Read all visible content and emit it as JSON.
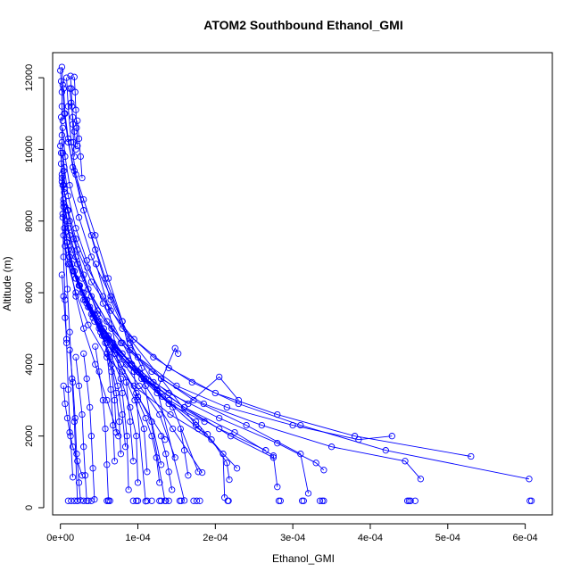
{
  "chart_data": {
    "type": "line",
    "title": "ATOM2 Southbound Ethanol_GMI",
    "xlabel": "Ethanol_GMI",
    "ylabel": "Altitude (m)",
    "xlim": [
      -1e-05,
      0.000635
    ],
    "ylim": [
      -200,
      12700
    ],
    "x_ticks": [
      0,
      0.0001,
      0.0002,
      0.0003,
      0.0004,
      0.0005,
      0.0006
    ],
    "x_tick_labels": [
      "0e+00",
      "1e-04",
      "2e-04",
      "3e-04",
      "4e-04",
      "5e-04",
      "6e-04"
    ],
    "y_ticks": [
      0,
      2000,
      4000,
      6000,
      8000,
      10000,
      12000
    ],
    "y_tick_labels": [
      "0",
      "2000",
      "4000",
      "6000",
      "8000",
      "10000",
      "12000"
    ],
    "marker": "open-circle",
    "color": "#0000ff",
    "grid": false,
    "series": [
      {
        "x": [
          2e-06,
          3e-06,
          5e-06,
          1e-05,
          1.8e-05,
          3e-05,
          4.5e-05,
          6.2e-05,
          8e-05,
          9.5e-05,
          0.00011
        ],
        "y": [
          12300,
          11800,
          11000,
          10200,
          9400,
          8600,
          7600,
          6400,
          5200,
          3800,
          180
        ]
      },
      {
        "x": [
          4e-06,
          6e-06,
          1e-05,
          1.6e-05,
          2.6e-05,
          4e-05,
          5.8e-05,
          8e-05,
          0.000105,
          0.000135
        ],
        "y": [
          11700,
          11000,
          10300,
          9500,
          8600,
          7600,
          6400,
          5200,
          3900,
          190
        ]
      },
      {
        "x": [
          8e-06,
          1e-05,
          1.4e-05,
          2e-05,
          3e-05,
          4.5e-05,
          6.5e-05,
          9e-05,
          0.000125,
          0.00016
        ],
        "y": [
          12000,
          11200,
          10200,
          9300,
          8300,
          7200,
          5800,
          4600,
          3300,
          200
        ]
      },
      {
        "x": [
          3e-06,
          6e-06,
          1.2e-05,
          2.4e-05,
          4e-05,
          6.5e-05,
          9e-05,
          0.00013,
          0.000175,
          0.000228
        ],
        "y": [
          10600,
          9800,
          9000,
          8100,
          7000,
          5900,
          4700,
          3600,
          2300,
          1100
        ]
      },
      {
        "x": [
          2e-06,
          5e-06,
          1e-05,
          2e-05,
          3.4e-05,
          5.5e-05,
          8e-05,
          0.00011,
          0.000145,
          0.000183
        ],
        "y": [
          10200,
          9500,
          8700,
          7800,
          6900,
          5700,
          4600,
          3400,
          2200,
          980
        ]
      },
      {
        "x": [
          1e-06,
          4e-06,
          9e-06,
          1.7e-05,
          3e-05,
          4.8e-05,
          7e-05,
          0.0001,
          0.000135
        ],
        "y": [
          9600,
          9000,
          8300,
          7500,
          6500,
          5400,
          4300,
          3100,
          1900
        ]
      },
      {
        "x": [
          2e-06,
          4e-06,
          7e-06,
          1.2e-05,
          2e-05,
          3e-05,
          4.5e-05,
          6e-05,
          7.5e-05
        ],
        "y": [
          9200,
          8500,
          7700,
          6800,
          5900,
          5000,
          4000,
          3000,
          2000
        ]
      },
      {
        "x": [
          0.0,
          2e-06,
          4e-06,
          6e-06,
          9e-06,
          1.2e-05,
          1.5e-05,
          1.8e-05,
          2.2e-05
        ],
        "y": [
          10100,
          9300,
          8400,
          7300,
          6100,
          4900,
          3600,
          2400,
          190
        ]
      },
      {
        "x": [
          1e-06,
          2e-06,
          3e-06,
          4e-06,
          6e-06,
          8e-06,
          1e-05,
          1.3e-05,
          1.6e-05
        ],
        "y": [
          9900,
          9100,
          8100,
          7000,
          5800,
          4600,
          3300,
          2000,
          850
        ]
      },
      {
        "x": [
          3e-06,
          1e-05,
          2e-05,
          3.5e-05,
          5.5e-05,
          8e-05,
          0.00012,
          0.00017,
          0.00023,
          0.00031,
          0.00042,
          0.000605
        ],
        "y": [
          9000,
          8300,
          7500,
          6700,
          5900,
          5000,
          4200,
          3500,
          2900,
          2300,
          1600,
          800
        ]
      },
      {
        "x": [
          5e-06,
          1.2e-05,
          2.2e-05,
          4e-05,
          6.5e-05,
          9.5e-05,
          0.00014,
          0.0002,
          0.00028,
          0.00038,
          0.00053
        ],
        "y": [
          8800,
          8000,
          7200,
          6300,
          5500,
          4700,
          3900,
          3200,
          2600,
          2000,
          1430
        ]
      },
      {
        "x": [
          4e-06,
          1e-05,
          2e-05,
          3.6e-05,
          6e-05,
          9e-05,
          0.00013,
          0.000185,
          0.00026,
          0.00035,
          0.000445,
          0.000465
        ],
        "y": [
          8600,
          7800,
          7000,
          6100,
          5200,
          4400,
          3600,
          2900,
          2300,
          1700,
          1300,
          800
        ]
      },
      {
        "x": [
          6e-06,
          1.2e-05,
          2.2e-05,
          4e-05,
          6.6e-05,
          0.0001,
          0.00015,
          0.000215,
          0.0003,
          0.000385,
          0.000428
        ],
        "y": [
          8400,
          7600,
          6800,
          5900,
          5000,
          4200,
          3400,
          2800,
          2300,
          1900,
          2000
        ]
      },
      {
        "x": [
          3e-06,
          9e-06,
          1.8e-05,
          3.4e-05,
          5.8e-05,
          9.2e-05,
          0.00014,
          0.000205,
          0.00028,
          0.00033,
          0.00034
        ],
        "y": [
          8200,
          7400,
          6600,
          5700,
          4800,
          4000,
          3200,
          2500,
          1800,
          1250,
          1050
        ]
      },
      {
        "x": [
          7e-06,
          1.5e-05,
          2.8e-05,
          4.8e-05,
          7.8e-05,
          0.000118,
          0.000172,
          0.00024,
          0.00031,
          0.00032
        ],
        "y": [
          8000,
          7200,
          6400,
          5500,
          4600,
          3800,
          3000,
          2300,
          1500,
          400
        ]
      },
      {
        "x": [
          5e-06,
          1.2e-05,
          2.4e-05,
          4.2e-05,
          7e-05,
          0.000108,
          0.00016,
          0.000225,
          0.000275,
          0.00028
        ],
        "y": [
          7800,
          7000,
          6200,
          5300,
          4400,
          3600,
          2800,
          2100,
          1450,
          580
        ]
      },
      {
        "x": [
          4e-06,
          1e-05,
          2e-05,
          3.6e-05,
          6e-05,
          9.5e-05,
          0.000142,
          0.000195,
          0.000215,
          0.000218
        ],
        "y": [
          7600,
          6800,
          6000,
          5100,
          4200,
          3400,
          2600,
          1900,
          1250,
          780
        ]
      },
      {
        "x": [
          8e-06,
          1.6e-05,
          3e-05,
          5.2e-05,
          8.5e-05,
          0.000125,
          0.000175,
          0.00021,
          0.000212
        ],
        "y": [
          7400,
          6600,
          5800,
          4900,
          4000,
          3200,
          2400,
          1500,
          280
        ]
      },
      {
        "x": [
          1e-05,
          2e-05,
          3.6e-05,
          6e-05,
          9.5e-05,
          0.00014,
          0.000205,
          0.000265
        ],
        "y": [
          7200,
          6400,
          5600,
          4700,
          3800,
          3000,
          2200,
          1600
        ]
      },
      {
        "x": [
          1.2e-05,
          2.4e-05,
          4.2e-05,
          7e-05,
          0.00011,
          0.00016,
          0.00022,
          0.000275
        ],
        "y": [
          7000,
          6200,
          5400,
          4500,
          3600,
          2800,
          2000,
          1400
        ]
      },
      {
        "x": [
          1.5e-05,
          3e-05,
          5e-05,
          8e-05,
          0.00012,
          0.000165,
          0.000205,
          0.00023
        ],
        "y": [
          6800,
          6000,
          5200,
          4300,
          3500,
          2900,
          3650,
          3000
        ]
      },
      {
        "x": [
          1.8e-05,
          3.4e-05,
          5.6e-05,
          8.8e-05,
          0.000125,
          0.000148,
          0.000152
        ],
        "y": [
          6600,
          5800,
          5000,
          4100,
          3300,
          4450,
          4300
        ]
      },
      {
        "x": [
          2e-05,
          3.8e-05,
          6.2e-05,
          9.2e-05,
          0.000132,
          0.000178,
          0.00019
        ],
        "y": [
          6400,
          5600,
          4800,
          4000,
          3100,
          2200,
          2050
        ]
      },
      {
        "x": [
          2.5e-05,
          4.4e-05,
          6.8e-05,
          0.0001,
          0.00014,
          0.000186
        ],
        "y": [
          6200,
          5400,
          4600,
          3800,
          2900,
          2400
        ]
      },
      {
        "x": [
          2.8e-05,
          4.8e-05,
          7.2e-05,
          0.000105,
          0.000145,
          0.000178
        ],
        "y": [
          6000,
          5200,
          4400,
          3600,
          2800,
          1000
        ]
      },
      {
        "x": [
          3.2e-05,
          5.2e-05,
          7.6e-05,
          0.000102,
          0.000128,
          0.000148
        ],
        "y": [
          5800,
          5000,
          4200,
          3400,
          2600,
          1400
        ]
      },
      {
        "x": [
          3.6e-05,
          5.6e-05,
          7.8e-05,
          9.8e-05,
          0.000118,
          0.00013
        ],
        "y": [
          5600,
          4800,
          4000,
          3200,
          2400,
          1200
        ]
      },
      {
        "x": [
          4e-05,
          6e-05,
          8e-05,
          9.6e-05,
          0.000108,
          0.000112
        ],
        "y": [
          5400,
          4600,
          3800,
          3000,
          2200,
          1000
        ]
      },
      {
        "x": [
          4.4e-05,
          6.2e-05,
          7.8e-05,
          9e-05,
          9.8e-05,
          0.0001
        ],
        "y": [
          5200,
          4400,
          3600,
          2800,
          2000,
          700
        ]
      },
      {
        "x": [
          4.6e-05,
          6.2e-05,
          7.2e-05,
          8e-05,
          8.6e-05,
          8.8e-05
        ],
        "y": [
          6800,
          5600,
          4400,
          3200,
          2000,
          500
        ]
      },
      {
        "x": [
          5e-05,
          6.4e-05,
          7.4e-05,
          8e-05,
          8.4e-05
        ],
        "y": [
          5000,
          4200,
          3400,
          2600,
          1700
        ]
      },
      {
        "x": [
          5.4e-05,
          6.6e-05,
          7.2e-05,
          7.6e-05,
          7.8e-05
        ],
        "y": [
          4800,
          4000,
          3200,
          2400,
          1500
        ]
      },
      {
        "x": [
          5.8e-05,
          6.6e-05,
          7e-05,
          7.2e-05
        ],
        "y": [
          4600,
          3800,
          3000,
          2100
        ]
      },
      {
        "x": [
          4.5e-05,
          5e-05,
          5.5e-05,
          5.8e-05,
          6e-05,
          6.2e-05
        ],
        "y": [
          4500,
          3800,
          3000,
          2200,
          1200,
          200
        ]
      },
      {
        "x": [
          3e-05,
          3.4e-05,
          3.8e-05,
          4e-05,
          4.2e-05,
          4.4e-05
        ],
        "y": [
          4300,
          3600,
          2800,
          2000,
          1100,
          230
        ]
      },
      {
        "x": [
          2e-05,
          2.4e-05,
          2.8e-05,
          3e-05,
          3.2e-05,
          3.4e-05
        ],
        "y": [
          4200,
          3400,
          2600,
          1700,
          900,
          190
        ]
      },
      {
        "x": [
          1.2e-05,
          1.6e-05,
          1.9e-05,
          2.1e-05,
          2.4e-05,
          2.6e-05
        ],
        "y": [
          4400,
          3500,
          2500,
          1500,
          700,
          200
        ]
      },
      {
        "x": [
          1.3e-05,
          1.4e-05,
          1.5e-05,
          1.6e-05,
          1.7e-05,
          1.8e-05
        ],
        "y": [
          12050,
          11700,
          11200,
          10700,
          10200,
          9800
        ]
      },
      {
        "x": [
          1.8e-05,
          1.9e-05,
          2e-05,
          2.1e-05,
          2.2e-05
        ],
        "y": [
          12020,
          11600,
          11100,
          10600,
          10100
        ]
      },
      {
        "x": [
          1.2e-05,
          1.4e-05,
          1.6e-05,
          1.8e-05,
          2e-05
        ],
        "y": [
          11700,
          11300,
          10900,
          10500,
          10000
        ]
      },
      {
        "x": [
          2.2e-05,
          2.4e-05,
          2.6e-05,
          2.8e-05
        ],
        "y": [
          10800,
          10300,
          9800,
          9200
        ]
      },
      {
        "x": [
          0.0,
          1e-06,
          2e-06,
          2e-06,
          3e-06
        ],
        "y": [
          12200,
          11900,
          11600,
          11200,
          10800
        ]
      },
      {
        "x": [
          1e-06,
          2e-06,
          3e-06,
          4e-06,
          5e-06
        ],
        "y": [
          10900,
          10400,
          9900,
          9400,
          8900
        ]
      },
      {
        "x": [
          4e-06,
          6e-06,
          9e-06,
          1.2e-05,
          1.6e-05,
          2.2e-05,
          2.8e-05
        ],
        "y": [
          3400,
          2900,
          2500,
          2100,
          1700,
          1300,
          900
        ]
      },
      {
        "x": [
          2e-06,
          4e-06,
          6e-06,
          8e-06
        ],
        "y": [
          6500,
          5900,
          5300,
          4700
        ]
      },
      {
        "x": [
          0.0001,
          0.00011,
          0.000118,
          0.000124,
          0.000128
        ],
        "y": [
          3000,
          2500,
          2000,
          1400,
          700
        ]
      },
      {
        "x": [
          0.00013,
          0.000136,
          0.00014,
          0.000144
        ],
        "y": [
          2000,
          1500,
          1000,
          500
        ]
      },
      {
        "x": [
          0.000155,
          0.00016,
          0.000165
        ],
        "y": [
          2200,
          1600,
          900
        ]
      },
      {
        "x": [
          8.5e-05,
          9e-05,
          9.4e-05
        ],
        "y": [
          3500,
          2400,
          1300
        ]
      },
      {
        "x": [
          6e-05,
          6.5e-05,
          6.8e-05,
          7e-05
        ],
        "y": [
          4300,
          3300,
          2300,
          1300
        ]
      }
    ],
    "ground_points": {
      "y": 190,
      "x": [
        1e-05,
        1.4e-05,
        1.8e-05,
        2.2e-05,
        3e-05,
        3.6e-05,
        4e-05,
        6e-05,
        6.2e-05,
        6.4e-05,
        9.4e-05,
        9.8e-05,
        0.0001,
        0.000112,
        0.000118,
        0.000128,
        0.00013,
        0.000136,
        0.00014,
        0.000154,
        0.000156,
        0.000172,
        0.000176,
        0.00018,
        0.000216,
        0.000217,
        0.000282,
        0.000284,
        0.000312,
        0.000314,
        0.000335,
        0.000338,
        0.00034,
        0.000448,
        0.00045,
        0.000452,
        0.000458,
        0.000606,
        0.000608
      ]
    }
  }
}
